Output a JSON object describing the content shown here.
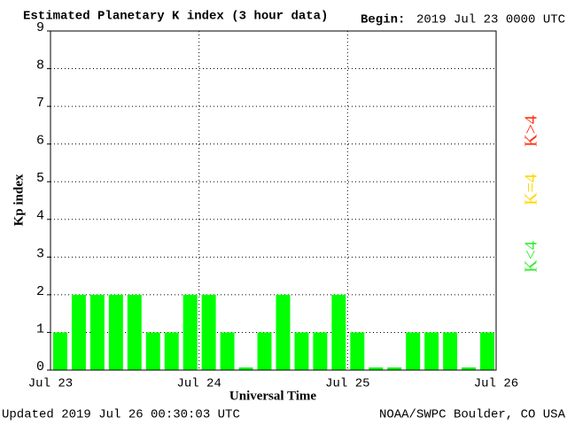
{
  "chart_data": {
    "type": "bar",
    "title": "Estimated Planetary K index (3 hour data)",
    "begin_label": "Begin:",
    "begin": "2019 Jul 23 0000 UTC",
    "ylabel": "Kp index",
    "xlabel": "Universal Time",
    "updated": "Updated 2019 Jul 26 00:30:03 UTC",
    "source": "NOAA/SWPC Boulder, CO USA",
    "categories": [
      null,
      null,
      null,
      null,
      null,
      null,
      null,
      null,
      null,
      null,
      null,
      null,
      null,
      null,
      null,
      null,
      null,
      null,
      null,
      null,
      null,
      null,
      null,
      null
    ],
    "values": [
      1,
      2,
      2,
      2,
      2,
      1,
      1,
      2,
      2,
      1,
      0,
      1,
      2,
      1,
      1,
      2,
      1,
      0,
      0,
      1,
      1,
      1,
      0,
      1
    ],
    "color": "#00ff00",
    "xtick_labels": [
      "Jul 23",
      "Jul 24",
      "Jul 25",
      "Jul 26"
    ],
    "ylim": [
      0,
      9
    ],
    "yticks": [
      0,
      1,
      2,
      3,
      4,
      5,
      6,
      7,
      8,
      9
    ],
    "grid": true,
    "legend": [
      {
        "name": "K<4",
        "color": "#33ee33"
      },
      {
        "name": "K=4",
        "color": "#ffd700"
      },
      {
        "name": "K>4",
        "color": "#ff3311"
      }
    ]
  }
}
